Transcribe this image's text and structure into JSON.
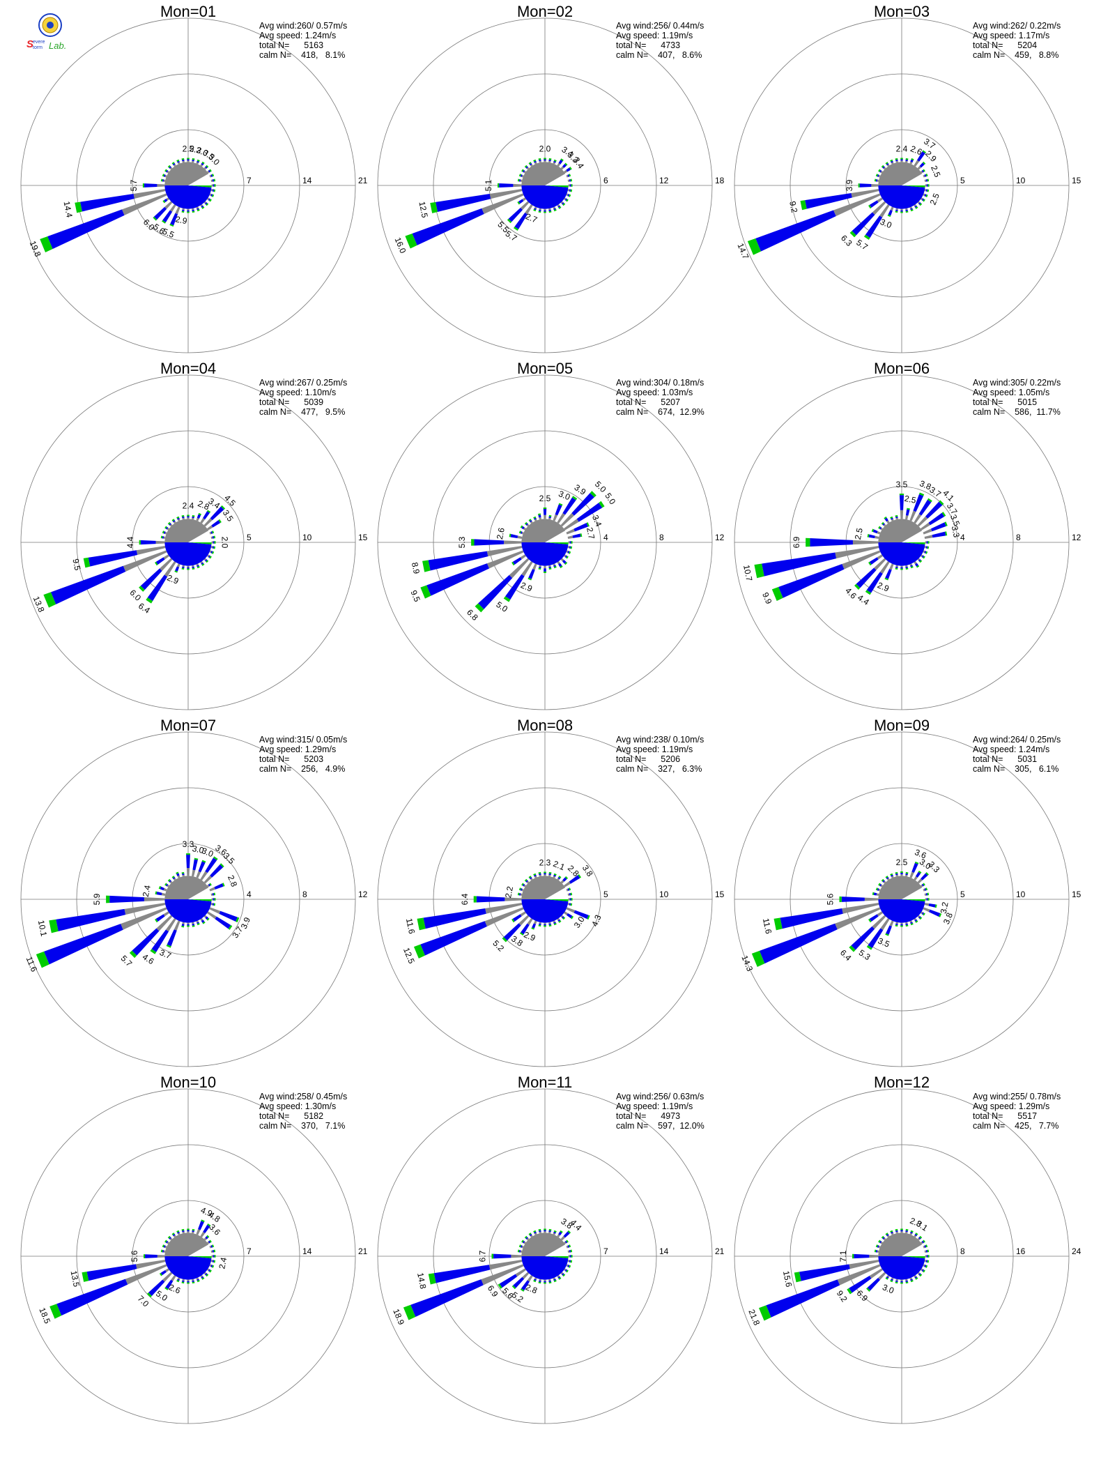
{
  "logo": {
    "text": "Severe Storm Lab.",
    "icon": "lab-seal-icon",
    "colors": [
      "#1a3fc4",
      "#e8262b",
      "#2aa52a",
      "#d8a000"
    ]
  },
  "legend_colors": {
    "speed_low": "#888888",
    "speed_mid": "#0000ee",
    "speed_high": "#00cc00"
  },
  "chart_data": [
    {
      "type": "wind-rose",
      "title": "Mon=01",
      "rings": [
        7,
        14,
        21
      ],
      "dominant_dir": 247.5,
      "peak": 19.8,
      "stats": {
        "avg_wind": "Avg wind:260/ 0.57m/s",
        "avg_speed": "Avg speed: 1.24m/s",
        "total": "total N=      5163",
        "calm": "calm N=    418,   8.1%"
      },
      "labels": [
        {
          "dir": 247.5,
          "value": 19.8
        },
        {
          "dir": 258.75,
          "value": 14.4
        },
        {
          "dir": 270,
          "value": 5.7
        },
        {
          "dir": 225,
          "value": 6.0
        },
        {
          "dir": 213.75,
          "value": 5.6
        },
        {
          "dir": 202.5,
          "value": 5.5
        },
        {
          "dir": 191.25,
          "value": 2.9
        },
        {
          "dir": 0,
          "value": 2.5
        },
        {
          "dir": 11.25,
          "value": 2.2
        },
        {
          "dir": 22.5,
          "value": 3.0
        },
        {
          "dir": 33.75,
          "value": 3.5
        },
        {
          "dir": 45,
          "value": 3.0
        }
      ]
    },
    {
      "type": "wind-rose",
      "title": "Mon=02",
      "rings": [
        6,
        12,
        18
      ],
      "dominant_dir": 247.5,
      "peak": 16.0,
      "stats": {
        "avg_wind": "Avg wind:256/ 0.44m/s",
        "avg_speed": "Avg speed: 1.19m/s",
        "total": "total N=      4733",
        "calm": "calm N=    407,   8.6%"
      },
      "labels": [
        {
          "dir": 247.5,
          "value": 16.0
        },
        {
          "dir": 258.75,
          "value": 12.5
        },
        {
          "dir": 270,
          "value": 5.1
        },
        {
          "dir": 225,
          "value": 5.5
        },
        {
          "dir": 213.75,
          "value": 5.7
        },
        {
          "dir": 202.5,
          "value": 2.7
        },
        {
          "dir": 0,
          "value": 2.0
        },
        {
          "dir": 33.75,
          "value": 3.4
        },
        {
          "dir": 45,
          "value": 3.3
        },
        {
          "dir": 56.25,
          "value": 3.4
        }
      ]
    },
    {
      "type": "wind-rose",
      "title": "Mon=03",
      "rings": [
        5,
        10,
        15
      ],
      "dominant_dir": 247.5,
      "peak": 14.7,
      "stats": {
        "avg_wind": "Avg wind:262/ 0.22m/s",
        "avg_speed": "Avg speed: 1.17m/s",
        "total": "total N=      5204",
        "calm": "calm N=    459,   8.8%"
      },
      "labels": [
        {
          "dir": 247.5,
          "value": 14.7
        },
        {
          "dir": 258.75,
          "value": 9.2
        },
        {
          "dir": 270,
          "value": 3.9
        },
        {
          "dir": 225,
          "value": 6.3
        },
        {
          "dir": 213.75,
          "value": 5.7
        },
        {
          "dir": 202.5,
          "value": 3.0
        },
        {
          "dir": 0,
          "value": 2.4
        },
        {
          "dir": 22.5,
          "value": 2.6
        },
        {
          "dir": 33.75,
          "value": 3.7
        },
        {
          "dir": 45,
          "value": 2.9
        },
        {
          "dir": 67.5,
          "value": 2.5
        },
        {
          "dir": 112.5,
          "value": 2.5
        }
      ]
    },
    {
      "type": "wind-rose",
      "title": "Mon=04",
      "rings": [
        5,
        10,
        15
      ],
      "dominant_dir": 247.5,
      "peak": 13.8,
      "stats": {
        "avg_wind": "Avg wind:267/ 0.25m/s",
        "avg_speed": "Avg speed: 1.10m/s",
        "total": "total N=      5039",
        "calm": "calm N=    477,   9.5%"
      },
      "labels": [
        {
          "dir": 247.5,
          "value": 13.8
        },
        {
          "dir": 258.75,
          "value": 9.5
        },
        {
          "dir": 270,
          "value": 4.4
        },
        {
          "dir": 225,
          "value": 6.0
        },
        {
          "dir": 213.75,
          "value": 6.4
        },
        {
          "dir": 202.5,
          "value": 2.9
        },
        {
          "dir": 0,
          "value": 2.4
        },
        {
          "dir": 22.5,
          "value": 2.8
        },
        {
          "dir": 33.75,
          "value": 3.4
        },
        {
          "dir": 45,
          "value": 4.5
        },
        {
          "dir": 56.25,
          "value": 3.5
        },
        {
          "dir": 90,
          "value": 2.0
        }
      ]
    },
    {
      "type": "wind-rose",
      "title": "Mon=05",
      "rings": [
        4,
        8,
        12
      ],
      "dominant_dir": 247.5,
      "peak": 9.5,
      "stats": {
        "avg_wind": "Avg wind:304/ 0.18m/s",
        "avg_speed": "Avg speed: 1.03m/s",
        "total": "total N=      5207",
        "calm": "calm N=    674,  12.9%"
      },
      "labels": [
        {
          "dir": 247.5,
          "value": 9.5
        },
        {
          "dir": 258.75,
          "value": 8.9
        },
        {
          "dir": 270,
          "value": 5.3
        },
        {
          "dir": 281.25,
          "value": 2.6
        },
        {
          "dir": 225,
          "value": 6.8
        },
        {
          "dir": 213.75,
          "value": 5.0
        },
        {
          "dir": 202.5,
          "value": 2.9
        },
        {
          "dir": 0,
          "value": 2.5
        },
        {
          "dir": 22.5,
          "value": 3.0
        },
        {
          "dir": 33.75,
          "value": 3.9
        },
        {
          "dir": 45,
          "value": 5.0
        },
        {
          "dir": 56.25,
          "value": 5.0
        },
        {
          "dir": 67.5,
          "value": 3.4
        },
        {
          "dir": 78.75,
          "value": 2.7
        }
      ]
    },
    {
      "type": "wind-rose",
      "title": "Mon=06",
      "rings": [
        4,
        8,
        12
      ],
      "dominant_dir": 258.75,
      "peak": 10.7,
      "stats": {
        "avg_wind": "Avg wind:305/ 0.22m/s",
        "avg_speed": "Avg speed: 1.05m/s",
        "total": "total N=      5015",
        "calm": "calm N=    586,  11.7%"
      },
      "labels": [
        {
          "dir": 258.75,
          "value": 10.7
        },
        {
          "dir": 247.5,
          "value": 9.9
        },
        {
          "dir": 270,
          "value": 6.9
        },
        {
          "dir": 281.25,
          "value": 2.5
        },
        {
          "dir": 225,
          "value": 4.6
        },
        {
          "dir": 213.75,
          "value": 4.4
        },
        {
          "dir": 202.5,
          "value": 2.9
        },
        {
          "dir": 0,
          "value": 3.5
        },
        {
          "dir": 11.25,
          "value": 2.5
        },
        {
          "dir": 22.5,
          "value": 3.8
        },
        {
          "dir": 33.75,
          "value": 3.7
        },
        {
          "dir": 45,
          "value": 4.1
        },
        {
          "dir": 56.25,
          "value": 3.7
        },
        {
          "dir": 67.5,
          "value": 3.5
        },
        {
          "dir": 78.75,
          "value": 3.3
        }
      ]
    },
    {
      "type": "wind-rose",
      "title": "Mon=07",
      "rings": [
        4,
        8,
        12
      ],
      "dominant_dir": 247.5,
      "peak": 11.6,
      "stats": {
        "avg_wind": "Avg wind:315/ 0.05m/s",
        "avg_speed": "Avg speed: 1.29m/s",
        "total": "total N=      5203",
        "calm": "calm N=    256,   4.9%"
      },
      "labels": [
        {
          "dir": 247.5,
          "value": 11.6
        },
        {
          "dir": 258.75,
          "value": 10.1
        },
        {
          "dir": 270,
          "value": 5.9
        },
        {
          "dir": 281.25,
          "value": 2.4
        },
        {
          "dir": 225,
          "value": 5.7
        },
        {
          "dir": 213.75,
          "value": 4.6
        },
        {
          "dir": 202.5,
          "value": 3.7
        },
        {
          "dir": 0,
          "value": 3.3
        },
        {
          "dir": 11.25,
          "value": 3.0
        },
        {
          "dir": 22.5,
          "value": 3.0
        },
        {
          "dir": 33.75,
          "value": 3.6
        },
        {
          "dir": 45,
          "value": 3.5
        },
        {
          "dir": 67.5,
          "value": 2.8
        },
        {
          "dir": 112.5,
          "value": 3.9
        },
        {
          "dir": 123.75,
          "value": 3.7
        }
      ]
    },
    {
      "type": "wind-rose",
      "title": "Mon=08",
      "rings": [
        5,
        10,
        15
      ],
      "dominant_dir": 247.5,
      "peak": 12.5,
      "stats": {
        "avg_wind": "Avg wind:238/ 0.10m/s",
        "avg_speed": "Avg speed: 1.19m/s",
        "total": "total N=      5206",
        "calm": "calm N=    327,   6.3%"
      },
      "labels": [
        {
          "dir": 247.5,
          "value": 12.5
        },
        {
          "dir": 258.75,
          "value": 11.6
        },
        {
          "dir": 270,
          "value": 6.4
        },
        {
          "dir": 281.25,
          "value": 2.2
        },
        {
          "dir": 225,
          "value": 5.2
        },
        {
          "dir": 213.75,
          "value": 3.8
        },
        {
          "dir": 202.5,
          "value": 2.9
        },
        {
          "dir": 0,
          "value": 2.3
        },
        {
          "dir": 22.5,
          "value": 2.1
        },
        {
          "dir": 45,
          "value": 2.8
        },
        {
          "dir": 56.25,
          "value": 3.8
        },
        {
          "dir": 112.5,
          "value": 4.3
        },
        {
          "dir": 123.75,
          "value": 3.0
        }
      ]
    },
    {
      "type": "wind-rose",
      "title": "Mon=09",
      "rings": [
        5,
        10,
        15
      ],
      "dominant_dir": 247.5,
      "peak": 14.3,
      "stats": {
        "avg_wind": "Avg wind:264/ 0.25m/s",
        "avg_speed": "Avg speed: 1.24m/s",
        "total": "total N=      5031",
        "calm": "calm N=    305,   6.1%"
      },
      "labels": [
        {
          "dir": 247.5,
          "value": 14.3
        },
        {
          "dir": 258.75,
          "value": 11.6
        },
        {
          "dir": 270,
          "value": 5.6
        },
        {
          "dir": 225,
          "value": 6.4
        },
        {
          "dir": 213.75,
          "value": 5.3
        },
        {
          "dir": 202.5,
          "value": 3.5
        },
        {
          "dir": 0,
          "value": 2.5
        },
        {
          "dir": 22.5,
          "value": 3.6
        },
        {
          "dir": 33.75,
          "value": 3.0
        },
        {
          "dir": 45,
          "value": 3.3
        },
        {
          "dir": 101.25,
          "value": 3.2
        },
        {
          "dir": 112.5,
          "value": 3.8
        }
      ]
    },
    {
      "type": "wind-rose",
      "title": "Mon=10",
      "rings": [
        7,
        14,
        21
      ],
      "dominant_dir": 247.5,
      "peak": 18.5,
      "stats": {
        "avg_wind": "Avg wind:258/ 0.45m/s",
        "avg_speed": "Avg speed: 1.30m/s",
        "total": "total N=      5182",
        "calm": "calm N=    370,   7.1%"
      },
      "labels": [
        {
          "dir": 247.5,
          "value": 18.5
        },
        {
          "dir": 258.75,
          "value": 13.5
        },
        {
          "dir": 270,
          "value": 5.6
        },
        {
          "dir": 225,
          "value": 7.0
        },
        {
          "dir": 213.75,
          "value": 5.0
        },
        {
          "dir": 202.5,
          "value": 2.6
        },
        {
          "dir": 22.5,
          "value": 4.9
        },
        {
          "dir": 33.75,
          "value": 4.8
        },
        {
          "dir": 45,
          "value": 3.6
        },
        {
          "dir": 101.25,
          "value": 2.4
        }
      ]
    },
    {
      "type": "wind-rose",
      "title": "Mon=11",
      "rings": [
        7,
        14,
        21
      ],
      "dominant_dir": 247.5,
      "peak": 18.9,
      "stats": {
        "avg_wind": "Avg wind:256/ 0.63m/s",
        "avg_speed": "Avg speed: 1.19m/s",
        "total": "total N=      4973",
        "calm": "calm N=    597,  12.0%"
      },
      "labels": [
        {
          "dir": 247.5,
          "value": 18.9
        },
        {
          "dir": 258.75,
          "value": 14.8
        },
        {
          "dir": 270,
          "value": 6.7
        },
        {
          "dir": 236.25,
          "value": 6.9
        },
        {
          "dir": 225,
          "value": 5.6
        },
        {
          "dir": 213.75,
          "value": 5.2
        },
        {
          "dir": 202.5,
          "value": 2.8
        },
        {
          "dir": 33.75,
          "value": 3.8
        },
        {
          "dir": 45,
          "value": 4.4
        }
      ]
    },
    {
      "type": "wind-rose",
      "title": "Mon=12",
      "rings": [
        8,
        16,
        24
      ],
      "dominant_dir": 247.5,
      "peak": 21.8,
      "stats": {
        "avg_wind": "Avg wind:255/ 0.78m/s",
        "avg_speed": "Avg speed: 1.29m/s",
        "total": "total N=      5517",
        "calm": "calm N=    425,   7.7%"
      },
      "labels": [
        {
          "dir": 247.5,
          "value": 21.8
        },
        {
          "dir": 258.75,
          "value": 15.6
        },
        {
          "dir": 270,
          "value": 7.1
        },
        {
          "dir": 236.25,
          "value": 9.2
        },
        {
          "dir": 225,
          "value": 6.9
        },
        {
          "dir": 202.5,
          "value": 3.0
        },
        {
          "dir": 22.5,
          "value": 2.8
        },
        {
          "dir": 33.75,
          "value": 3.1
        }
      ]
    }
  ]
}
